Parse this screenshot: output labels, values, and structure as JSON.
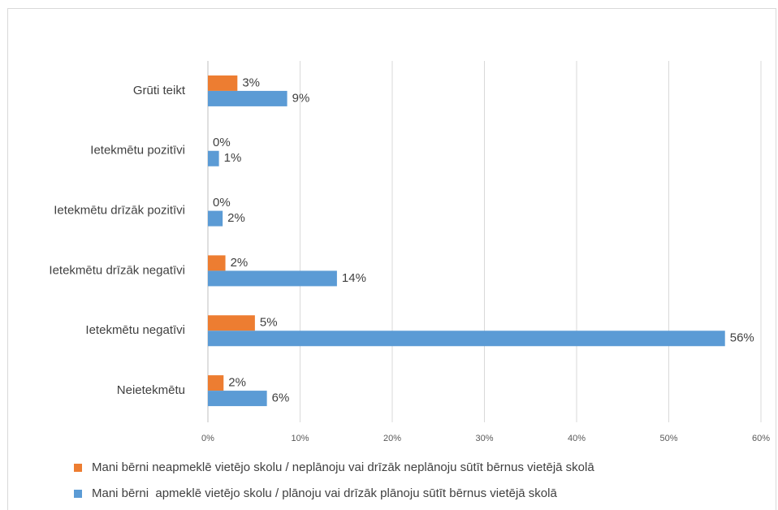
{
  "chart_data": {
    "type": "hbar",
    "categories": [
      "Grūti teikt",
      "Ietekmētu pozitīvi",
      "Ietekmētu drīzāk pozitīvi",
      "Ietekmētu drīzāk negatīvi",
      "Ietekmētu negatīvi",
      "Neietekmētu"
    ],
    "series": [
      {
        "name": "Mani bērni neapmeklē vietējo skolu / neplānoju vai drīzāk neplānoju sūtīt bērnus vietējā skolā",
        "color": "#ed7d31",
        "values": [
          3.2,
          0,
          0,
          1.9,
          5.1,
          1.7
        ],
        "value_labels": [
          "3%",
          "0%",
          "0%",
          "2%",
          "5%",
          "2%"
        ]
      },
      {
        "name": "Mani bērni  apmeklē vietējo skolu / plānoju vai drīzāk plānoju sūtīt bērnus vietējā skolā",
        "color": "#5b9bd5",
        "values": [
          8.6,
          1.2,
          1.6,
          14.0,
          56.1,
          6.4
        ],
        "value_labels": [
          "9%",
          "1%",
          "2%",
          "14%",
          "56%",
          "6%"
        ]
      }
    ],
    "xlim": [
      0,
      60
    ],
    "xticks": [
      {
        "value": 0,
        "label": "0%"
      },
      {
        "value": 10,
        "label": "10%"
      },
      {
        "value": 20,
        "label": "20%"
      },
      {
        "value": 30,
        "label": "30%"
      },
      {
        "value": 40,
        "label": "40%"
      },
      {
        "value": 50,
        "label": "50%"
      },
      {
        "value": 60,
        "label": "60%"
      }
    ],
    "grid": true,
    "legend": "bottom"
  }
}
